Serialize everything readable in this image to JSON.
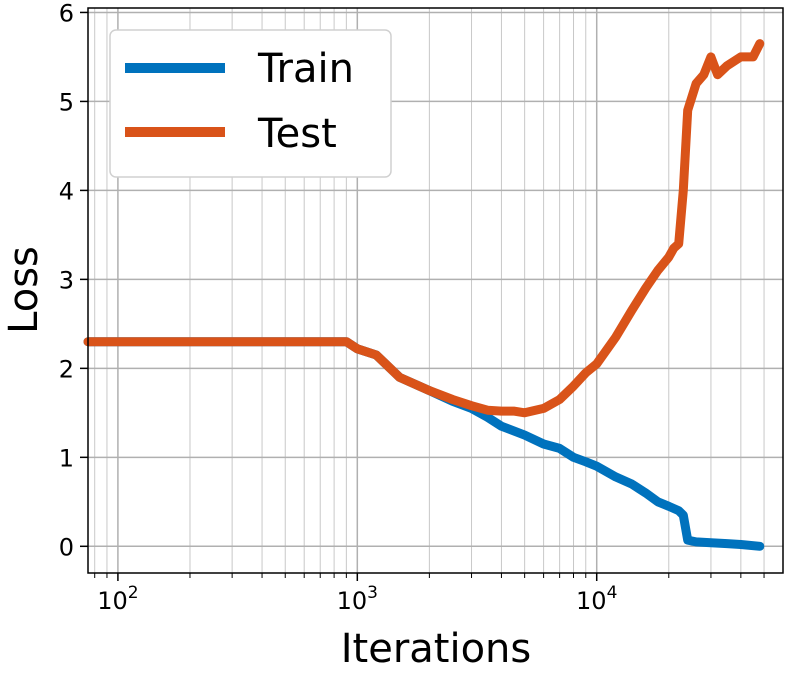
{
  "chart_data": {
    "type": "line",
    "xlabel": "Iterations",
    "ylabel": "Loss",
    "xscale": "log",
    "xlim": [
      75,
      60000
    ],
    "ylim": [
      -0.3,
      6.05
    ],
    "grid": true,
    "legend_position": "top-left",
    "x_ticks": [
      {
        "value": 100,
        "base": "10",
        "exp": "2"
      },
      {
        "value": 1000,
        "base": "10",
        "exp": "3"
      },
      {
        "value": 10000,
        "base": "10",
        "exp": "4"
      }
    ],
    "y_ticks": [
      0,
      1,
      2,
      3,
      4,
      5,
      6
    ],
    "series": [
      {
        "name": "Train",
        "color": "#0072bd",
        "x": [
          75,
          100,
          200,
          500,
          900,
          1000,
          1200,
          1500,
          2000,
          2500,
          3000,
          3500,
          4000,
          5000,
          6000,
          7000,
          8000,
          9000,
          10000,
          12000,
          14000,
          16000,
          18000,
          20000,
          22000,
          23000,
          24000,
          26000,
          30000,
          35000,
          40000,
          48000
        ],
        "y": [
          2.3,
          2.3,
          2.3,
          2.3,
          2.3,
          2.22,
          2.15,
          1.9,
          1.75,
          1.63,
          1.55,
          1.45,
          1.35,
          1.25,
          1.15,
          1.1,
          1.0,
          0.95,
          0.9,
          0.78,
          0.7,
          0.6,
          0.5,
          0.45,
          0.4,
          0.35,
          0.07,
          0.05,
          0.04,
          0.03,
          0.02,
          0.0
        ]
      },
      {
        "name": "Test",
        "color": "#d95319",
        "x": [
          75,
          100,
          200,
          500,
          900,
          1000,
          1200,
          1500,
          2000,
          2500,
          3000,
          3500,
          4000,
          4500,
          5000,
          6000,
          7000,
          8000,
          9000,
          10000,
          12000,
          14000,
          16000,
          18000,
          20000,
          21000,
          22000,
          23000,
          24000,
          26000,
          28000,
          30000,
          32000,
          35000,
          40000,
          45000,
          48000
        ],
        "y": [
          2.3,
          2.3,
          2.3,
          2.3,
          2.3,
          2.22,
          2.15,
          1.9,
          1.75,
          1.65,
          1.58,
          1.53,
          1.52,
          1.52,
          1.5,
          1.55,
          1.65,
          1.8,
          1.95,
          2.05,
          2.35,
          2.65,
          2.9,
          3.1,
          3.25,
          3.35,
          3.4,
          4.0,
          4.9,
          5.2,
          5.3,
          5.5,
          5.3,
          5.4,
          5.5,
          5.5,
          5.65
        ]
      }
    ]
  }
}
